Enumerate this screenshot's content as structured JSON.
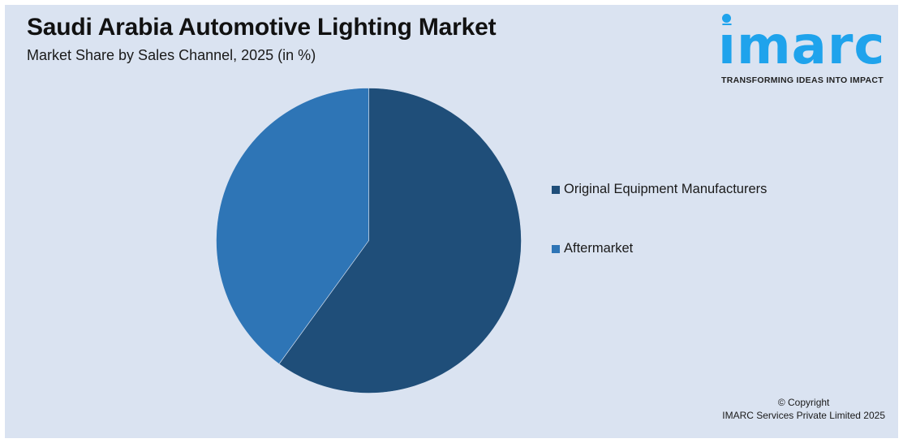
{
  "header": {
    "title": "Saudi Arabia Automotive Lighting Market",
    "subtitle": "Market Share by Sales Channel, 2025 (in %)"
  },
  "logo": {
    "wordmark": "imarc",
    "tagline": "TRANSFORMING IDEAS INTO IMPACT",
    "color": "#1fa3ec"
  },
  "legend": {
    "items": [
      {
        "label": "Original Equipment Manufacturers",
        "color": "#1f4e79"
      },
      {
        "label": "Aftermarket",
        "color": "#2e75b6"
      }
    ]
  },
  "footer": {
    "copyright_line1": "© Copyright",
    "copyright_line2": "IMARC Services Private Limited 2025"
  },
  "colors": {
    "background": "#dae3f1",
    "oem": "#1f4e79",
    "aftermarket": "#2e75b6"
  },
  "chart_data": {
    "type": "pie",
    "title": "Saudi Arabia Automotive Lighting Market",
    "subtitle": "Market Share by Sales Channel, 2025 (in %)",
    "categories": [
      "Original Equipment Manufacturers",
      "Aftermarket"
    ],
    "values": [
      60,
      40
    ],
    "colors": [
      "#1f4e79",
      "#2e75b6"
    ],
    "start_angle_deg": 0,
    "direction": "clockwise",
    "data_labels": false,
    "legend_position": "right"
  }
}
